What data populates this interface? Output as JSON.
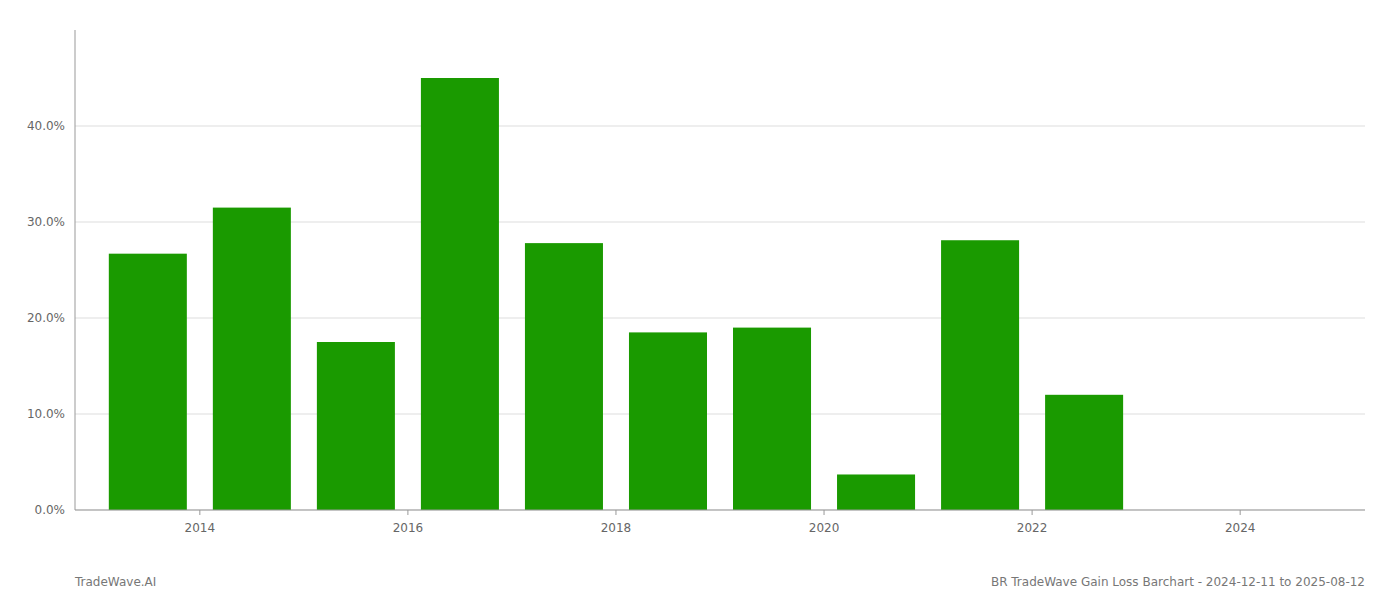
{
  "chart_data": {
    "type": "bar",
    "x": [
      2013.5,
      2014.5,
      2015.5,
      2016.5,
      2017.5,
      2018.5,
      2019.5,
      2020.5,
      2021.5,
      2022.5
    ],
    "values": [
      0.267,
      0.315,
      0.175,
      0.45,
      0.278,
      0.185,
      0.19,
      0.037,
      0.281,
      0.12
    ],
    "color": "#1a9a00",
    "xlim": [
      2012.8,
      2025.2
    ],
    "xticks": [
      2014,
      2016,
      2018,
      2020,
      2022,
      2024
    ],
    "ylim": [
      0.0,
      0.5
    ],
    "yticks": [
      {
        "value": 0.0,
        "label": "0.0%"
      },
      {
        "value": 0.1,
        "label": "10.0%"
      },
      {
        "value": 0.2,
        "label": "20.0%"
      },
      {
        "value": 0.3,
        "label": "30.0%"
      },
      {
        "value": 0.4,
        "label": "40.0%"
      }
    ],
    "grid": true,
    "annotations": [
      "TradeWave.AI",
      "BR TradeWave Gain Loss Barchart - 2024-12-11 to 2025-08-12"
    ]
  }
}
